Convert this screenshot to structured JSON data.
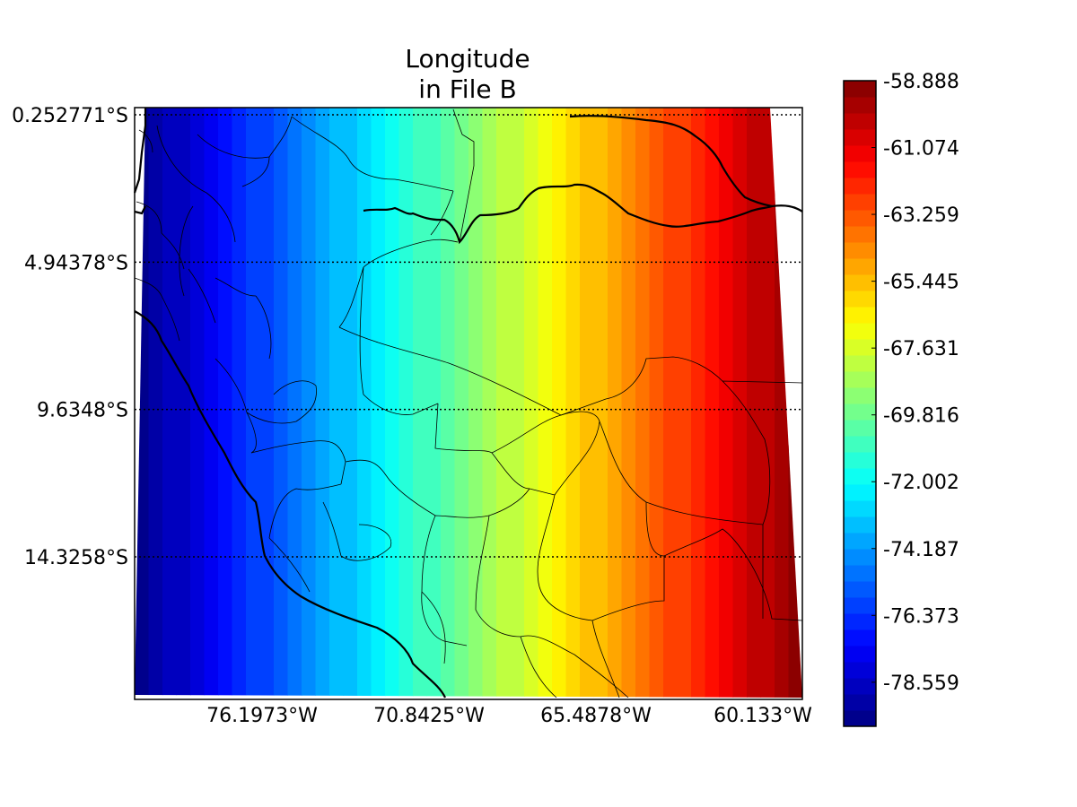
{
  "chart_data": {
    "type": "heatmap",
    "title": [
      "Longitude",
      "in File B"
    ],
    "x_ticks": [
      {
        "value": -76.1973,
        "label": "76.1973°W"
      },
      {
        "value": -70.8425,
        "label": "70.8425°W"
      },
      {
        "value": -65.4878,
        "label": "65.4878°W"
      },
      {
        "value": -60.133,
        "label": "60.133°W"
      }
    ],
    "y_ticks": [
      {
        "value": -0.252771,
        "label": "0.252771°S"
      },
      {
        "value": -4.94378,
        "label": "4.94378°S"
      },
      {
        "value": -9.6348,
        "label": "9.6348°S"
      },
      {
        "value": -14.3258,
        "label": "14.3258°S"
      }
    ],
    "colorbar": {
      "colormap": "jet",
      "min": -80.0,
      "max": -58.888,
      "levels": 40,
      "ticks": [
        -58.888,
        -61.074,
        -63.259,
        -65.445,
        -67.631,
        -69.816,
        -72.002,
        -74.187,
        -76.373,
        -78.559
      ],
      "tick_labels": [
        "-58.888",
        "-61.074",
        "-63.259",
        "-65.445",
        "-67.631",
        "-69.816",
        "-72.002",
        "-74.187",
        "-76.373",
        "-78.559"
      ]
    },
    "field_range": [
      -80.0,
      -58.888
    ],
    "grid": "dotted",
    "gridlines": {
      "x": false,
      "y": true
    },
    "coastlines": true,
    "boundaries": true
  }
}
